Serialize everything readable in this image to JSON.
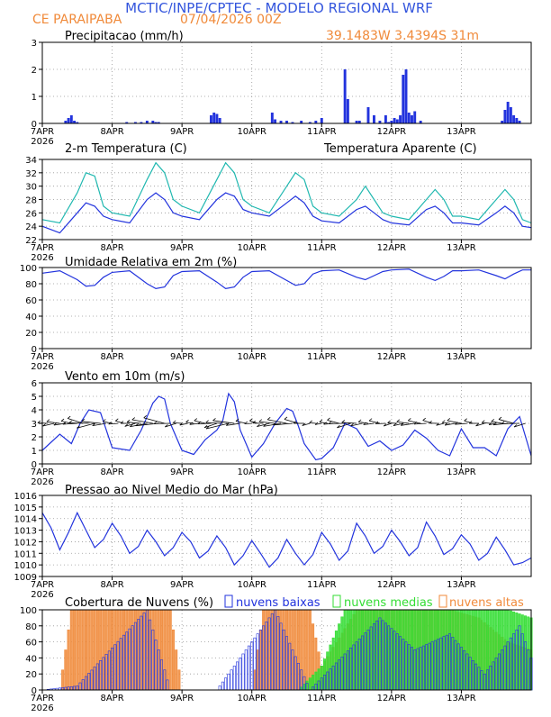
{
  "header": {
    "title": "MCTIC/INPE/CPTEC - MODELO REGIONAL WRF",
    "location": "CE PARAIPABA",
    "run": "07/04/2026 00Z",
    "coords": "39.1483W 3.4394S 31m"
  },
  "colors": {
    "title": "#3355dd",
    "orange": "#f08a3a",
    "blue": "#2233dd",
    "cyan": "#20b8b0",
    "green": "#33dd33",
    "black": "#000000"
  },
  "xaxis": {
    "range": [
      0,
      168
    ],
    "ticks": [
      {
        "label": "7APR",
        "sub": "2026",
        "hour": 0
      },
      {
        "label": "8APR",
        "hour": 24
      },
      {
        "label": "9APR",
        "hour": 48
      },
      {
        "label": "10APR",
        "hour": 72
      },
      {
        "label": "11APR",
        "hour": 96
      },
      {
        "label": "12APR",
        "hour": 120
      },
      {
        "label": "13APR",
        "hour": 144
      }
    ]
  },
  "chart_data": [
    {
      "type": "bar",
      "title": "Precipitacao (mm/h)",
      "ylim": [
        0,
        3
      ],
      "yticks": [
        0,
        1,
        2,
        3
      ],
      "x": [
        8,
        9,
        10,
        11,
        12,
        29,
        32,
        34,
        36,
        38,
        39,
        40,
        58,
        59,
        60,
        61,
        79,
        80,
        82,
        84,
        86,
        89,
        92,
        94,
        96,
        104,
        105,
        108,
        109,
        112,
        114,
        116,
        118,
        119,
        120,
        121,
        122,
        123,
        124,
        125,
        126,
        127,
        128,
        130,
        158,
        159,
        160,
        161,
        162,
        163,
        164
      ],
      "values": [
        0.1,
        0.2,
        0.3,
        0.1,
        0.05,
        0.05,
        0.05,
        0.05,
        0.1,
        0.1,
        0.05,
        0.05,
        0.3,
        0.4,
        0.35,
        0.2,
        0.4,
        0.15,
        0.1,
        0.1,
        0.05,
        0.1,
        0.05,
        0.1,
        0.2,
        2.0,
        0.9,
        0.1,
        0.1,
        0.6,
        0.3,
        0.1,
        0.3,
        0.05,
        0.1,
        0.2,
        0.15,
        0.3,
        1.8,
        2.0,
        0.4,
        0.3,
        0.45,
        0.1,
        0.1,
        0.5,
        0.8,
        0.6,
        0.3,
        0.2,
        0.1
      ]
    },
    {
      "type": "line",
      "title": "2-m Temperatura (C)",
      "title_right": "Temperatura Aparente (C)",
      "ylim": [
        22,
        34
      ],
      "yticks": [
        22,
        24,
        26,
        28,
        30,
        32,
        34
      ],
      "x": [
        0,
        6,
        12,
        15,
        18,
        21,
        24,
        30,
        36,
        39,
        42,
        45,
        48,
        54,
        60,
        63,
        66,
        69,
        72,
        78,
        84,
        87,
        90,
        93,
        96,
        102,
        108,
        111,
        114,
        117,
        120,
        126,
        132,
        135,
        138,
        141,
        144,
        150,
        156,
        159,
        162,
        165,
        168
      ],
      "series": [
        {
          "name": "2-m Temperatura",
          "values": [
            24,
            23,
            26,
            27.5,
            27,
            25.5,
            25,
            24.5,
            28,
            29,
            28,
            26,
            25.5,
            25,
            28,
            29,
            28.5,
            26.5,
            26,
            25.5,
            27.5,
            28.5,
            27.5,
            25.5,
            24.8,
            24.5,
            26.5,
            27,
            26,
            25,
            24.5,
            24.2,
            26.5,
            27,
            26,
            24.5,
            24.5,
            24.2,
            26,
            27,
            26,
            24,
            23.8
          ]
        },
        {
          "name": "Temperatura Aparente",
          "values": [
            25,
            24.5,
            29,
            32,
            31.5,
            27,
            26,
            25.5,
            31,
            33.5,
            32,
            28,
            27,
            26,
            31,
            33.5,
            32,
            28,
            27,
            26,
            30,
            32,
            31,
            27,
            26,
            25.5,
            28,
            30,
            28,
            26,
            25.5,
            25,
            28,
            29.5,
            28,
            25.5,
            25.5,
            25,
            28,
            29.5,
            28,
            25,
            24.5
          ]
        }
      ]
    },
    {
      "type": "line",
      "title": "Umidade Relativa em 2m (%)",
      "ylim": [
        0,
        100
      ],
      "yticks": [
        0,
        20,
        40,
        60,
        80,
        100
      ],
      "x": [
        0,
        6,
        12,
        15,
        18,
        21,
        24,
        30,
        36,
        39,
        42,
        45,
        48,
        54,
        60,
        63,
        66,
        69,
        72,
        78,
        84,
        87,
        90,
        93,
        96,
        102,
        108,
        111,
        114,
        117,
        120,
        126,
        132,
        135,
        138,
        141,
        144,
        150,
        156,
        159,
        162,
        165,
        168
      ],
      "values": [
        93,
        96,
        85,
        77,
        78,
        88,
        94,
        96,
        80,
        74,
        76,
        90,
        95,
        96,
        82,
        74,
        76,
        88,
        95,
        96,
        84,
        78,
        80,
        92,
        96,
        97,
        88,
        85,
        90,
        95,
        97,
        98,
        88,
        84,
        89,
        96,
        96,
        97,
        90,
        86,
        92,
        97,
        97
      ]
    },
    {
      "type": "line",
      "title": "Vento em 10m (m/s)",
      "ylim": [
        0,
        6
      ],
      "yticks": [
        0,
        1,
        2,
        3,
        4,
        5,
        6
      ],
      "x": [
        0,
        6,
        10,
        13,
        16,
        20,
        24,
        30,
        34,
        36,
        38,
        40,
        42,
        44,
        48,
        52,
        56,
        60,
        62,
        64,
        66,
        68,
        72,
        76,
        80,
        84,
        86,
        88,
        90,
        94,
        96,
        100,
        104,
        108,
        112,
        116,
        120,
        124,
        128,
        132,
        136,
        140,
        144,
        148,
        152,
        156,
        160,
        164,
        168
      ],
      "values": [
        1,
        2.2,
        1.5,
        3,
        4,
        3.8,
        1.2,
        1,
        2.5,
        3.5,
        4.5,
        5,
        4.8,
        3,
        1,
        0.7,
        1.8,
        2.5,
        3.2,
        5.2,
        4.6,
        2.5,
        0.5,
        1.5,
        3,
        4.1,
        3.9,
        2.8,
        1.5,
        0.3,
        0.4,
        1.2,
        3,
        2.6,
        1.3,
        1.7,
        1,
        1.4,
        2.5,
        1.9,
        1,
        0.6,
        2.6,
        1.2,
        1.2,
        0.6,
        2.6,
        3.5,
        0.6
      ],
      "arrow_every_hours": 2
    },
    {
      "type": "line",
      "title": "Pressao ao Nivel Medio do Mar (hPa)",
      "ylim": [
        1009,
        1016
      ],
      "yticks": [
        1009,
        1010,
        1011,
        1012,
        1013,
        1014,
        1015,
        1016
      ],
      "x": [
        0,
        3,
        6,
        9,
        12,
        15,
        18,
        21,
        24,
        27,
        30,
        33,
        36,
        39,
        42,
        45,
        48,
        51,
        54,
        57,
        60,
        63,
        66,
        69,
        72,
        75,
        78,
        81,
        84,
        87,
        90,
        93,
        96,
        99,
        102,
        105,
        108,
        111,
        114,
        117,
        120,
        123,
        126,
        129,
        132,
        135,
        138,
        141,
        144,
        147,
        150,
        153,
        156,
        159,
        162,
        165,
        168
      ],
      "values": [
        1014.5,
        1013.2,
        1011.3,
        1012.8,
        1014.5,
        1013,
        1011.5,
        1012.2,
        1013.6,
        1012.5,
        1011,
        1011.6,
        1013,
        1012,
        1010.8,
        1011.5,
        1012.8,
        1012,
        1010.6,
        1011.2,
        1012.5,
        1011.5,
        1010,
        1010.8,
        1012.1,
        1011,
        1009.8,
        1010.6,
        1012.2,
        1011,
        1010,
        1010.9,
        1012.8,
        1011.8,
        1010.4,
        1011.2,
        1013.6,
        1012.5,
        1011,
        1011.6,
        1013,
        1012,
        1010.8,
        1011.5,
        1013.7,
        1012.5,
        1010.9,
        1011.4,
        1012.6,
        1011.8,
        1010.4,
        1011,
        1012.4,
        1011.3,
        1010,
        1010.2,
        1010.6
      ]
    },
    {
      "type": "bar",
      "title": "Cobertura de Nuvens (%)",
      "ylim": [
        0,
        100
      ],
      "yticks": [
        0,
        20,
        40,
        60,
        80,
        100
      ],
      "series": [
        {
          "name": "nuvens baixas",
          "x": [
            0,
            12,
            36,
            44,
            60,
            68,
            80,
            92,
            100,
            116,
            128,
            140,
            152,
            164,
            168
          ],
          "values": [
            0,
            5,
            100,
            0,
            0,
            40,
            100,
            0,
            30,
            90,
            50,
            70,
            20,
            80,
            40
          ]
        },
        {
          "name": "nuvens medias",
          "x": [
            0,
            88,
            96,
            104,
            110,
            120,
            130,
            140,
            150,
            160,
            168
          ],
          "values": [
            0,
            0,
            30,
            100,
            100,
            100,
            100,
            100,
            100,
            100,
            90
          ]
        },
        {
          "name": "nuvens altas",
          "x": [
            0,
            6,
            10,
            14,
            44,
            48,
            72,
            76,
            80,
            92,
            96,
            108,
            120,
            128,
            140,
            150,
            160,
            168
          ],
          "values": [
            0,
            0,
            100,
            100,
            100,
            0,
            0,
            100,
            100,
            100,
            30,
            100,
            100,
            100,
            100,
            90,
            60,
            50
          ]
        }
      ]
    }
  ]
}
